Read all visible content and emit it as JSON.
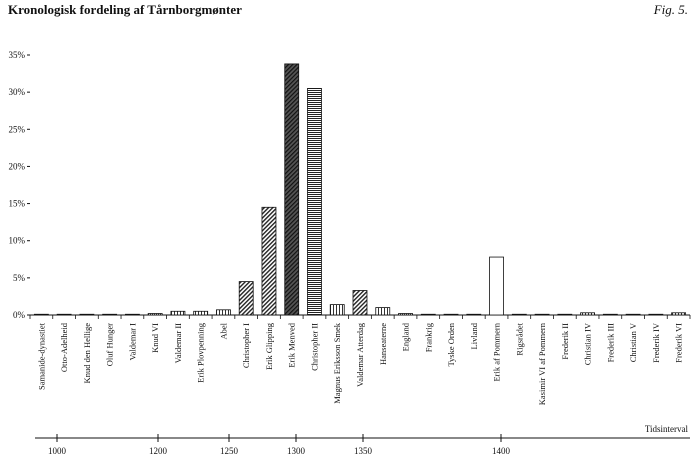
{
  "title": "Kronologisk fordeling af Tårnborgmønter",
  "fig_label": "Fig. 5.",
  "chart_data": {
    "type": "bar",
    "ylim": [
      0,
      35
    ],
    "y_ticks": [
      "0%",
      "5%",
      "10%",
      "15%",
      "20%",
      "25%",
      "30%",
      "35%"
    ],
    "grid": false,
    "categories": [
      "Samanide-dynastiet",
      "Otto-Adelheid",
      "Knud den Hellige",
      "Oluf Hunger",
      "Valdemar I",
      "Knud VI",
      "Valdemar II",
      "Erik Plovpenning",
      "Abel",
      "Christopher I",
      "Erik Glipping",
      "Erik Menved",
      "Christopher II",
      "Magnus Eriksson Smek",
      "Valdemar Atterdag",
      "Hanseaterne",
      "England",
      "Frankrig",
      "Tyske Orden",
      "Livland",
      "Erik af Pommern",
      "Rigsrådet",
      "Kasimir VI af Pommern",
      "Frederik II",
      "Christian IV",
      "Frederik III",
      "Christian V",
      "Frederik IV",
      "Frederik VI"
    ],
    "values": [
      0.1,
      0.1,
      0.1,
      0.1,
      0.1,
      0.2,
      0.5,
      0.5,
      0.7,
      4.5,
      14.5,
      33.8,
      30.5,
      1.4,
      3.3,
      1.0,
      0.2,
      0.1,
      0.1,
      0.1,
      7.8,
      0.1,
      0.1,
      0.1,
      0.3,
      0.1,
      0.1,
      0.1,
      0.3
    ],
    "patterns": [
      "dense",
      "dense",
      "dense",
      "dense",
      "dense",
      "dense",
      "vert",
      "vert",
      "vert",
      "diag",
      "diag",
      "dark",
      "horiz",
      "vert",
      "diag",
      "vert",
      "dense",
      "dense",
      "dense",
      "dense",
      "white",
      "dense",
      "dense",
      "dense",
      "vert",
      "dense",
      "dense",
      "dense",
      "vert"
    ],
    "timeline": {
      "label": "Tidsinterval",
      "ticks": [
        "1000",
        "1200",
        "1250",
        "1300",
        "1350",
        "1400"
      ],
      "tick_values": [
        1000,
        1200,
        1250,
        1300,
        1350,
        1400
      ]
    }
  }
}
